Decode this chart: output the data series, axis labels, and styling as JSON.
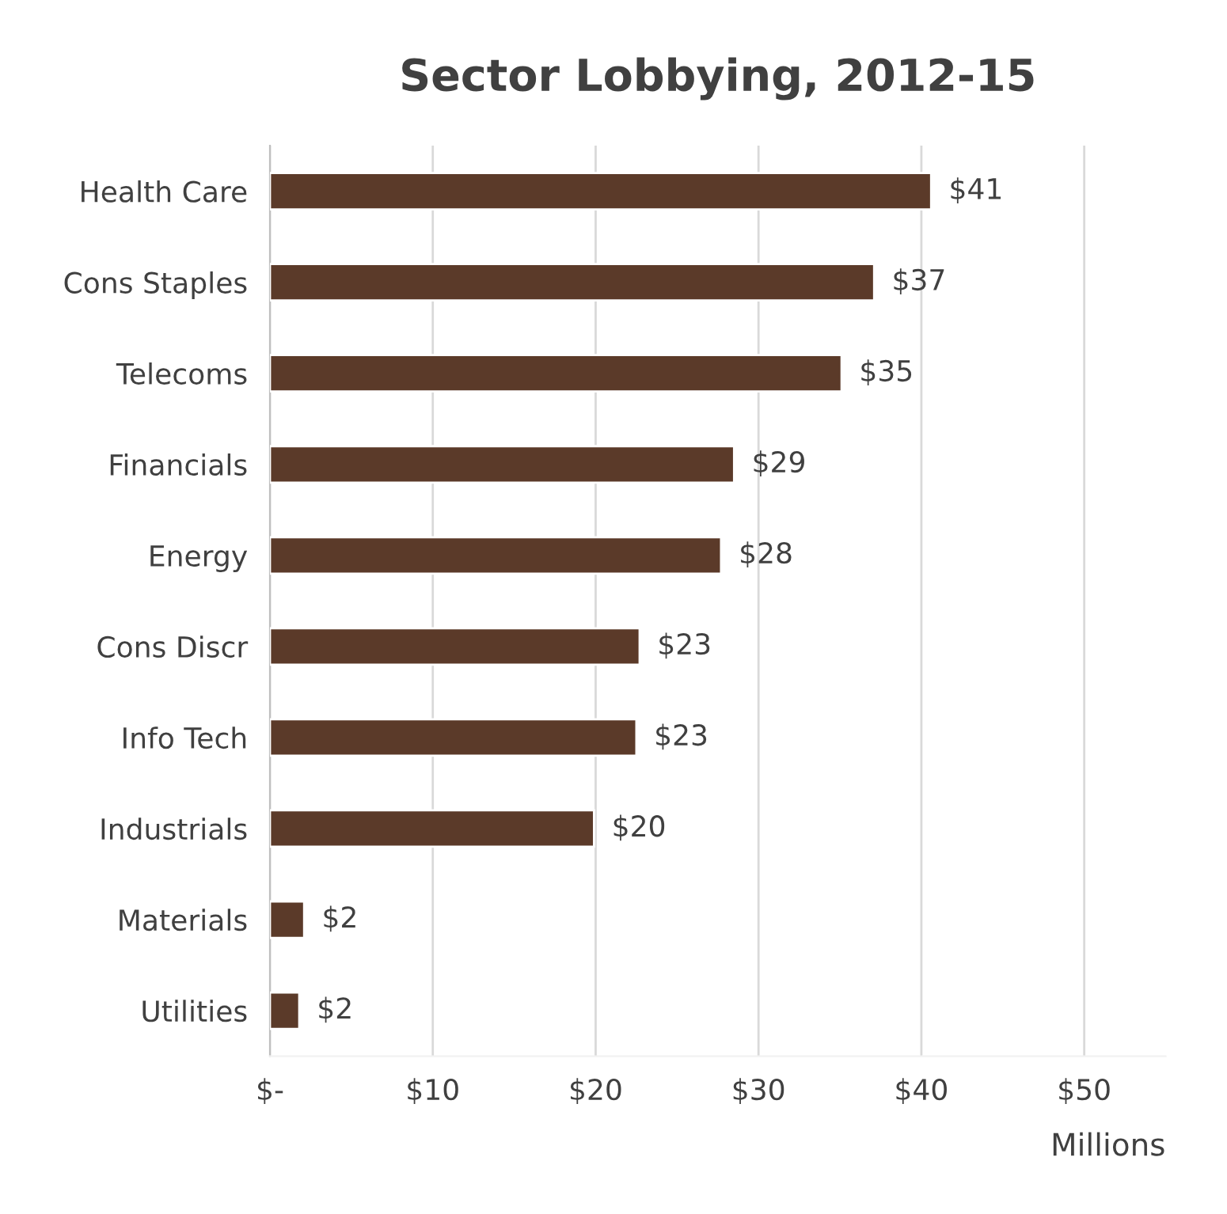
{
  "chart_data": {
    "type": "bar",
    "orientation": "horizontal",
    "title": "Sector Lobbying, 2012-15",
    "xlabel": "Millions",
    "categories": [
      "Health Care",
      "Cons Staples",
      "Telecoms",
      "Financials",
      "Energy",
      "Cons Discr",
      "Info Tech",
      "Industrials",
      "Materials",
      "Utilities"
    ],
    "values": [
      40.6,
      37.1,
      35.1,
      28.5,
      27.7,
      22.7,
      22.5,
      19.9,
      2.1,
      1.8
    ],
    "value_labels": [
      "$41",
      "$37",
      "$35",
      "$29",
      "$28",
      "$23",
      "$23",
      "$20",
      "$2",
      "$2"
    ],
    "color": "#5b3a29",
    "xlim": [
      0,
      55
    ],
    "xticks": [
      {
        "value": 0,
        "label": "$-"
      },
      {
        "value": 10,
        "label": "$10"
      },
      {
        "value": 20,
        "label": "$20"
      },
      {
        "value": 30,
        "label": "$30"
      },
      {
        "value": 40,
        "label": "$40"
      },
      {
        "value": 50,
        "label": "$50"
      }
    ],
    "grid": "x"
  }
}
